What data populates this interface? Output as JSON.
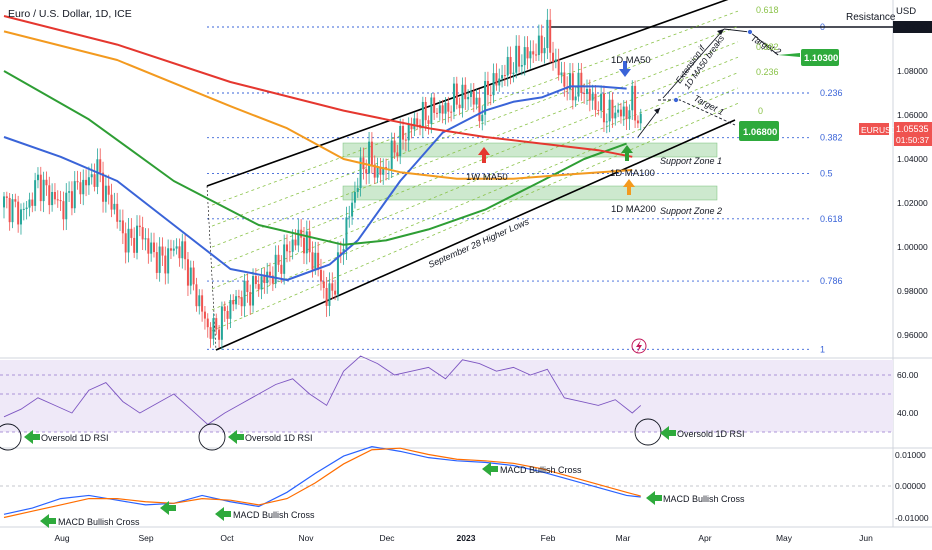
{
  "header": {
    "symbol_title": "Euro / U.S. Dollar, 1D, ICE",
    "currency": "USD"
  },
  "price_tag": {
    "symbol": "EURUSD",
    "price": "1.05535",
    "countdown": "01:50:37"
  },
  "colors": {
    "candle_up": "#26a69a",
    "candle_down": "#ef5350",
    "ma50": "#3a64d8",
    "ma100": "#2e9e34",
    "ma200": "#e5372f",
    "ma50_weekly": "#f39a1f",
    "channel": "#000000",
    "fib": "#3a64d8",
    "fib_ext": "#8bc34a",
    "target_green": "#2eaa3c",
    "rsi": "#7e57c2",
    "macd": "#2962ff",
    "signal": "#ff6d00"
  },
  "annotations": {
    "resistance": "Resistance",
    "target1_price": "1.06800",
    "target2_price": "1.10300",
    "target1_label": "Target 1",
    "target2_label": "Target 2",
    "extension_label": "Extension if\n1D MA50 breaks",
    "ma50_label": "1D MA50",
    "ma100_label": "1D MA100",
    "ma200_label": "1D MA200",
    "w_ma50_label": "1W MA50",
    "support_zone1": "Support Zone 1",
    "support_zone2": "Support Zone 2",
    "higher_lows": "September 28 Higher Lows",
    "oversold_rsi": "Oversold 1D RSI",
    "macd_cross": "MACD Bullish Cross",
    "macd_cross_cut": "MACD Bullish Cross"
  },
  "chart_data": [
    {
      "type": "line",
      "title": "Euro / U.S. Dollar, 1D, ICE",
      "x_ticks": [
        "Aug",
        "Sep",
        "Oct",
        "Nov",
        "Dec",
        "2023",
        "Feb",
        "Mar",
        "Apr",
        "May",
        "Jun"
      ],
      "y_ticks": [
        "1.10000",
        "1.08000",
        "1.06000",
        "1.04000",
        "1.02000",
        "1.00000",
        "0.98000",
        "0.96000"
      ],
      "ylim": [
        0.95,
        1.102
      ],
      "fib_retracement": [
        {
          "level": "0",
          "price": 1.1
        },
        {
          "level": "0.236",
          "price": 1.07
        },
        {
          "level": "0.382",
          "price": 1.0497
        },
        {
          "level": "0.5",
          "price": 1.0334
        },
        {
          "level": "0.618",
          "price": 1.0128
        },
        {
          "level": "0.786",
          "price": 0.9845
        },
        {
          "level": "1",
          "price": 0.9535
        }
      ],
      "fib_extension_levels": [
        "0.618",
        "0.382",
        "0.236",
        "0"
      ],
      "series": [
        {
          "name": "EURUSD",
          "x": [
            0,
            3,
            6,
            9,
            12,
            15,
            18,
            21,
            24,
            27,
            30,
            33,
            36,
            39,
            42,
            45,
            48,
            51,
            54,
            57,
            60,
            63,
            66,
            69,
            72,
            75,
            78,
            81,
            84,
            87,
            90,
            93,
            96,
            99,
            102,
            105,
            108,
            111,
            114,
            117,
            120,
            123,
            126,
            129,
            132,
            135,
            138,
            141,
            144,
            147,
            150,
            153,
            156,
            159,
            162,
            165,
            168,
            171,
            174,
            177,
            180,
            183,
            186,
            189,
            192,
            195,
            198,
            201,
            204,
            207,
            210,
            213,
            216,
            219,
            222,
            225
          ],
          "y": [
            1.02,
            1.018,
            1.015,
            1.02,
            1.03,
            1.025,
            1.022,
            1.018,
            1.025,
            1.028,
            1.03,
            1.035,
            1.024,
            1.018,
            1.005,
            1.002,
            1.008,
            1.0,
            0.995,
            0.994,
            1.0,
            0.998,
            0.985,
            0.975,
            0.963,
            0.962,
            0.97,
            0.975,
            0.978,
            0.98,
            0.984,
            0.986,
            0.99,
            0.996,
            1.002,
            1.005,
            0.998,
            0.99,
            0.976,
            0.984,
            1.004,
            1.02,
            1.035,
            1.041,
            1.033,
            1.036,
            1.045,
            1.05,
            1.055,
            1.058,
            1.061,
            1.063,
            1.062,
            1.067,
            1.068,
            1.07,
            1.06,
            1.072,
            1.075,
            1.08,
            1.083,
            1.086,
            1.088,
            1.09,
            1.096,
            1.082,
            1.075,
            1.071,
            1.073,
            1.068,
            1.064,
            1.06,
            1.062,
            1.06,
            1.066,
            1.055
          ]
        },
        {
          "name": "1D MA50",
          "x": [
            0,
            20,
            40,
            60,
            80,
            100,
            115,
            125,
            140,
            155,
            170,
            180,
            190,
            200,
            210,
            220
          ],
          "y": [
            1.05,
            1.041,
            1.03,
            1.01,
            0.99,
            0.985,
            0.992,
            1.003,
            1.03,
            1.052,
            1.062,
            1.066,
            1.068,
            1.073,
            1.073,
            1.072
          ]
        },
        {
          "name": "1D MA100",
          "x": [
            0,
            30,
            60,
            90,
            120,
            135,
            150,
            170,
            190,
            205,
            220
          ],
          "y": [
            1.08,
            1.058,
            1.03,
            1.01,
            1.001,
            1.003,
            1.008,
            1.017,
            1.03,
            1.04,
            1.047
          ]
        },
        {
          "name": "1D MA200",
          "x": [
            0,
            40,
            80,
            120,
            150,
            170,
            190,
            210,
            222
          ],
          "y": [
            1.105,
            1.092,
            1.075,
            1.062,
            1.054,
            1.05,
            1.047,
            1.044,
            1.041
          ]
        },
        {
          "name": "1W MA50",
          "x": [
            0,
            40,
            80,
            100,
            120,
            140,
            160,
            180,
            200,
            222
          ],
          "y": [
            1.098,
            1.085,
            1.064,
            1.054,
            1.04,
            1.034,
            1.031,
            1.031,
            1.033,
            1.035
          ]
        }
      ]
    },
    {
      "type": "line",
      "title": "RSI",
      "y_ticks": [
        "60.00",
        "40.00"
      ],
      "series": [
        {
          "name": "RSI",
          "x": [
            0,
            6,
            12,
            18,
            24,
            30,
            36,
            42,
            48,
            54,
            60,
            66,
            72,
            78,
            84,
            90,
            96,
            102,
            108,
            114,
            120,
            126,
            132,
            138,
            144,
            150,
            156,
            162,
            168,
            174,
            180,
            186,
            192,
            198,
            204,
            210,
            216,
            222,
            225
          ],
          "y": [
            38,
            42,
            48,
            44,
            40,
            52,
            56,
            46,
            40,
            45,
            50,
            42,
            34,
            40,
            45,
            50,
            55,
            58,
            50,
            44,
            62,
            70,
            66,
            60,
            62,
            64,
            58,
            68,
            66,
            62,
            64,
            60,
            63,
            48,
            46,
            44,
            47,
            40,
            44
          ]
        }
      ]
    },
    {
      "type": "line",
      "title": "MACD",
      "y_ticks": [
        "0.01000",
        "0.00000",
        "-0.01000"
      ],
      "series": [
        {
          "name": "MACD",
          "x": [
            0,
            10,
            20,
            30,
            40,
            50,
            60,
            70,
            80,
            90,
            100,
            110,
            120,
            130,
            140,
            150,
            160,
            170,
            180,
            190,
            200,
            210,
            220,
            225
          ],
          "y": [
            -0.009,
            -0.007,
            -0.004,
            -0.003,
            -0.0045,
            -0.006,
            -0.0055,
            -0.003,
            -0.005,
            -0.0065,
            -0.002,
            0.004,
            0.0095,
            0.0125,
            0.011,
            0.009,
            0.008,
            0.0075,
            0.0065,
            0.0045,
            0.002,
            -0.0005,
            -0.003,
            -0.0035
          ]
        },
        {
          "name": "Signal",
          "x": [
            0,
            10,
            20,
            30,
            40,
            50,
            60,
            70,
            80,
            90,
            100,
            110,
            120,
            130,
            140,
            150,
            160,
            170,
            180,
            190,
            200,
            210,
            220,
            225
          ],
          "y": [
            -0.01,
            -0.008,
            -0.006,
            -0.004,
            -0.004,
            -0.005,
            -0.0055,
            -0.004,
            -0.0045,
            -0.006,
            -0.004,
            0.001,
            0.007,
            0.0115,
            0.012,
            0.01,
            0.0085,
            0.008,
            0.0072,
            0.0055,
            0.003,
            0.0005,
            -0.002,
            -0.0032
          ]
        }
      ]
    }
  ]
}
